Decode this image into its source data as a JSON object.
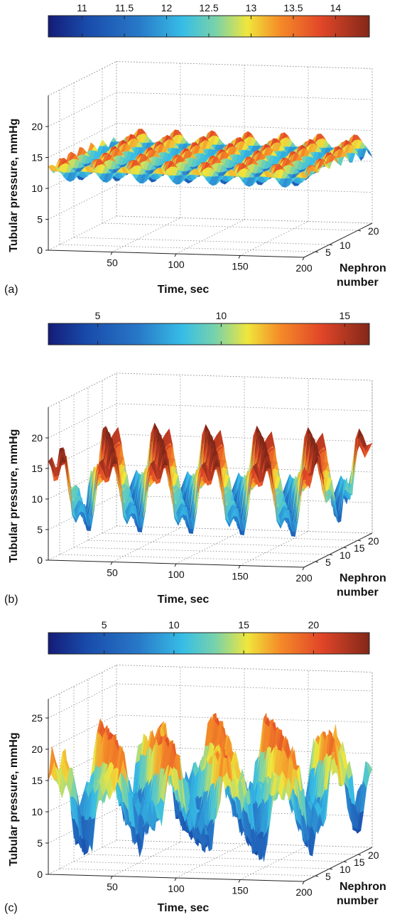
{
  "chart_data": [
    {
      "panel_label": "(a)",
      "type": "surface",
      "colorbar": {
        "ticks": [
          11,
          11.5,
          12,
          12.5,
          13,
          13.5,
          14
        ],
        "range": [
          10.6,
          14.4
        ]
      },
      "xlabel": "Time, sec",
      "ylabel": "Tubular pressure, mmHg",
      "nlabel_line1": "Nephron",
      "nlabel_line2": "number",
      "xlim": [
        0,
        200
      ],
      "ylim": [
        0,
        25
      ],
      "nlim": [
        1,
        25
      ],
      "xticks": [
        50,
        100,
        150,
        200
      ],
      "yticks": [
        0,
        5,
        10,
        15,
        20
      ],
      "nticks": [
        5,
        10,
        20
      ],
      "surface": {
        "mean": 12.5,
        "amplitude": 1.8,
        "period_sec": 28,
        "pattern": "regular checkerboard oscillation",
        "z_range": [
          10.7,
          14.3
        ]
      }
    },
    {
      "panel_label": "(b)",
      "type": "surface",
      "colorbar": {
        "ticks": [
          5,
          10,
          15
        ],
        "range": [
          3,
          16
        ]
      },
      "xlabel": "Time, sec",
      "ylabel": "Tubular pressure, mmHg",
      "nlabel_line1": "Nephron",
      "nlabel_line2": "number",
      "xlim": [
        0,
        200
      ],
      "ylim": [
        0,
        25
      ],
      "nlim": [
        1,
        25
      ],
      "xticks": [
        50,
        100,
        150,
        200
      ],
      "yticks": [
        0,
        5,
        10,
        15,
        20
      ],
      "nticks": [
        5,
        10,
        15,
        20
      ],
      "surface": {
        "mean": 11,
        "amplitude": 6.5,
        "period_sec": 40,
        "pattern": "bands of oscillations along nephron axis",
        "z_range": [
          4,
          16
        ]
      }
    },
    {
      "panel_label": "(c)",
      "type": "surface",
      "colorbar": {
        "ticks": [
          5,
          10,
          15,
          20
        ],
        "range": [
          1,
          24
        ]
      },
      "xlabel": "Time, sec",
      "ylabel": "Tubular pressure, mmHg",
      "nlabel_line1": "Nephron",
      "nlabel_line2": "number",
      "xlim": [
        0,
        200
      ],
      "ylim": [
        0,
        28
      ],
      "nlim": [
        1,
        25
      ],
      "xticks": [
        50,
        100,
        150,
        200
      ],
      "yticks": [
        0,
        5,
        10,
        15,
        20,
        25
      ],
      "nticks": [
        5,
        10,
        15,
        20
      ],
      "surface": {
        "mean": 12,
        "amplitude": 9,
        "period_sec": 45,
        "pattern": "irregular large-amplitude oscillations",
        "z_range": [
          3,
          24
        ]
      }
    }
  ]
}
